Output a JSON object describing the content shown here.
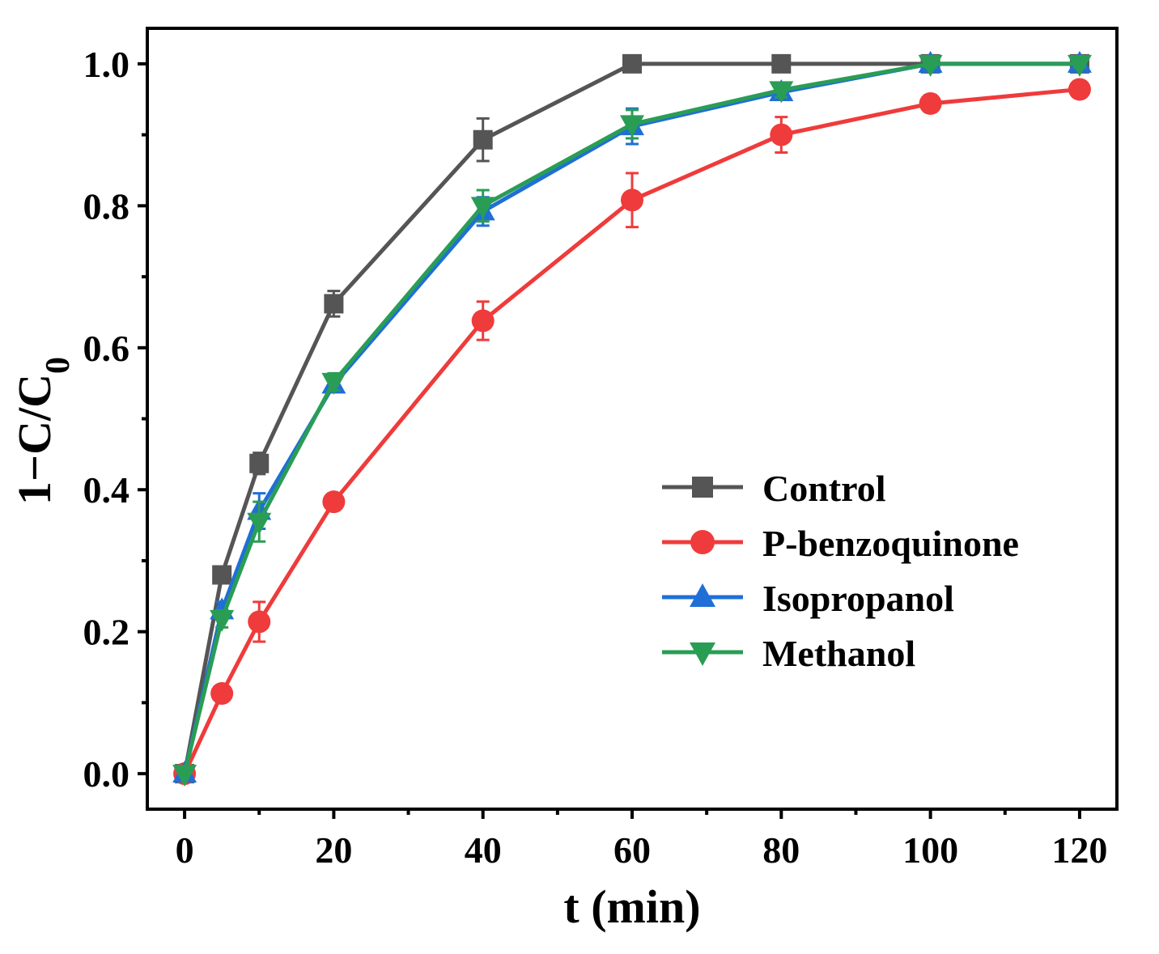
{
  "chart_data": {
    "type": "line",
    "xlabel": "t (min)",
    "ylabel_main": "1−C/C",
    "ylabel_sub": "0",
    "xlim": [
      -5,
      125
    ],
    "ylim": [
      -0.05,
      1.05
    ],
    "xticks": [
      0,
      20,
      40,
      60,
      80,
      100,
      120
    ],
    "xtick_labels": [
      "0",
      "20",
      "40",
      "60",
      "80",
      "100",
      "120"
    ],
    "yticks": [
      0.0,
      0.2,
      0.4,
      0.6,
      0.8,
      1.0
    ],
    "ytick_labels": [
      "0.0",
      "0.2",
      "0.4",
      "0.6",
      "0.8",
      "1.0"
    ],
    "grid": false,
    "legend_position": "right-middle",
    "x": [
      0,
      5,
      10,
      20,
      40,
      60,
      80,
      100,
      120
    ],
    "series": [
      {
        "name": "Control",
        "color": "#555555",
        "marker": "square",
        "values": [
          0,
          0.28,
          0.437,
          0.662,
          0.893,
          1.0,
          1.0,
          1.0,
          1.0
        ],
        "errors": [
          0,
          0.012,
          0.015,
          0.018,
          0.03,
          0.005,
          0.005,
          0.005,
          0.005
        ]
      },
      {
        "name": "P-benzoquinone",
        "color": "#ef3b3b",
        "marker": "circle",
        "values": [
          0,
          0.113,
          0.214,
          0.383,
          0.638,
          0.808,
          0.9,
          0.944,
          0.964
        ],
        "errors": [
          0,
          0.01,
          0.028,
          0.012,
          0.027,
          0.038,
          0.025,
          0.012,
          0.01
        ]
      },
      {
        "name": "Isopropanol",
        "color": "#1f6fd6",
        "marker": "triangle-up",
        "values": [
          0,
          0.23,
          0.37,
          0.548,
          0.792,
          0.912,
          0.96,
          1.0,
          1.0
        ],
        "errors": [
          0,
          0.012,
          0.025,
          0.01,
          0.02,
          0.025,
          0.01,
          0.005,
          0.005
        ]
      },
      {
        "name": "Methanol",
        "color": "#2a9d55",
        "marker": "triangle-down",
        "values": [
          0,
          0.218,
          0.355,
          0.552,
          0.8,
          0.915,
          0.963,
          1.0,
          1.0
        ],
        "errors": [
          0,
          0.012,
          0.028,
          0.012,
          0.022,
          0.02,
          0.01,
          0.005,
          0.005
        ]
      }
    ]
  }
}
